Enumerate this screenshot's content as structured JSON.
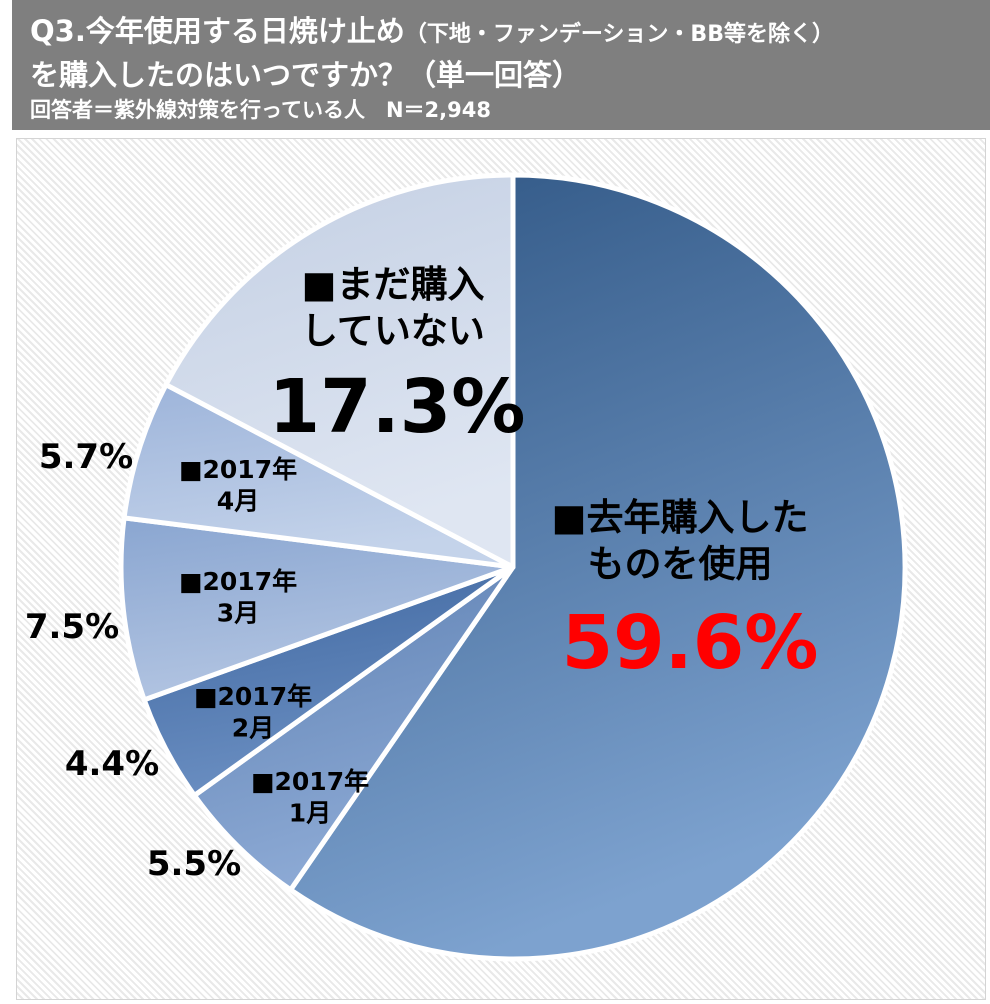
{
  "header": {
    "title_main": "Q3.今年使用する日焼け止め",
    "title_paren": "（下地・ファンデーション・BB等を除く）",
    "title_line2": "を購入したのはいつですか？（単一回答）",
    "respondents": "回答者＝紫外線対策を行っている人　N＝2,948"
  },
  "colors": {
    "header_bg": "#7f7f7f",
    "highlight": "#ff0000",
    "slice_border": "#ffffff"
  },
  "chart_data": {
    "type": "pie",
    "start_angle_deg": 0,
    "direction": "clockwise",
    "slices": [
      {
        "lines": [
          "■去年購入した",
          "ものを使用"
        ],
        "value": 59.6,
        "value_label": "59.6%",
        "colors": [
          "#2f5684",
          "#7da2cf"
        ]
      },
      {
        "lines": [
          "■2017年",
          "1月"
        ],
        "value": 5.5,
        "value_label": "5.5%",
        "colors": [
          "#5d80b2",
          "#8daad5"
        ]
      },
      {
        "lines": [
          "■2017年",
          "2月"
        ],
        "value": 4.4,
        "value_label": "4.4%",
        "colors": [
          "#3f67a0",
          "#6b8fc2"
        ]
      },
      {
        "lines": [
          "■2017年",
          "3月"
        ],
        "value": 7.5,
        "value_label": "7.5%",
        "colors": [
          "#8aa6d1",
          "#b3c5e2"
        ]
      },
      {
        "lines": [
          "■2017年",
          "4月"
        ],
        "value": 5.7,
        "value_label": "5.7%",
        "colors": [
          "#9db4da",
          "#c4d3ea"
        ]
      },
      {
        "lines": [
          "■まだ購入",
          "していない"
        ],
        "value": 17.3,
        "value_label": "17.3%",
        "colors": [
          "#c3cfe3",
          "#dfe6f2"
        ]
      }
    ]
  }
}
